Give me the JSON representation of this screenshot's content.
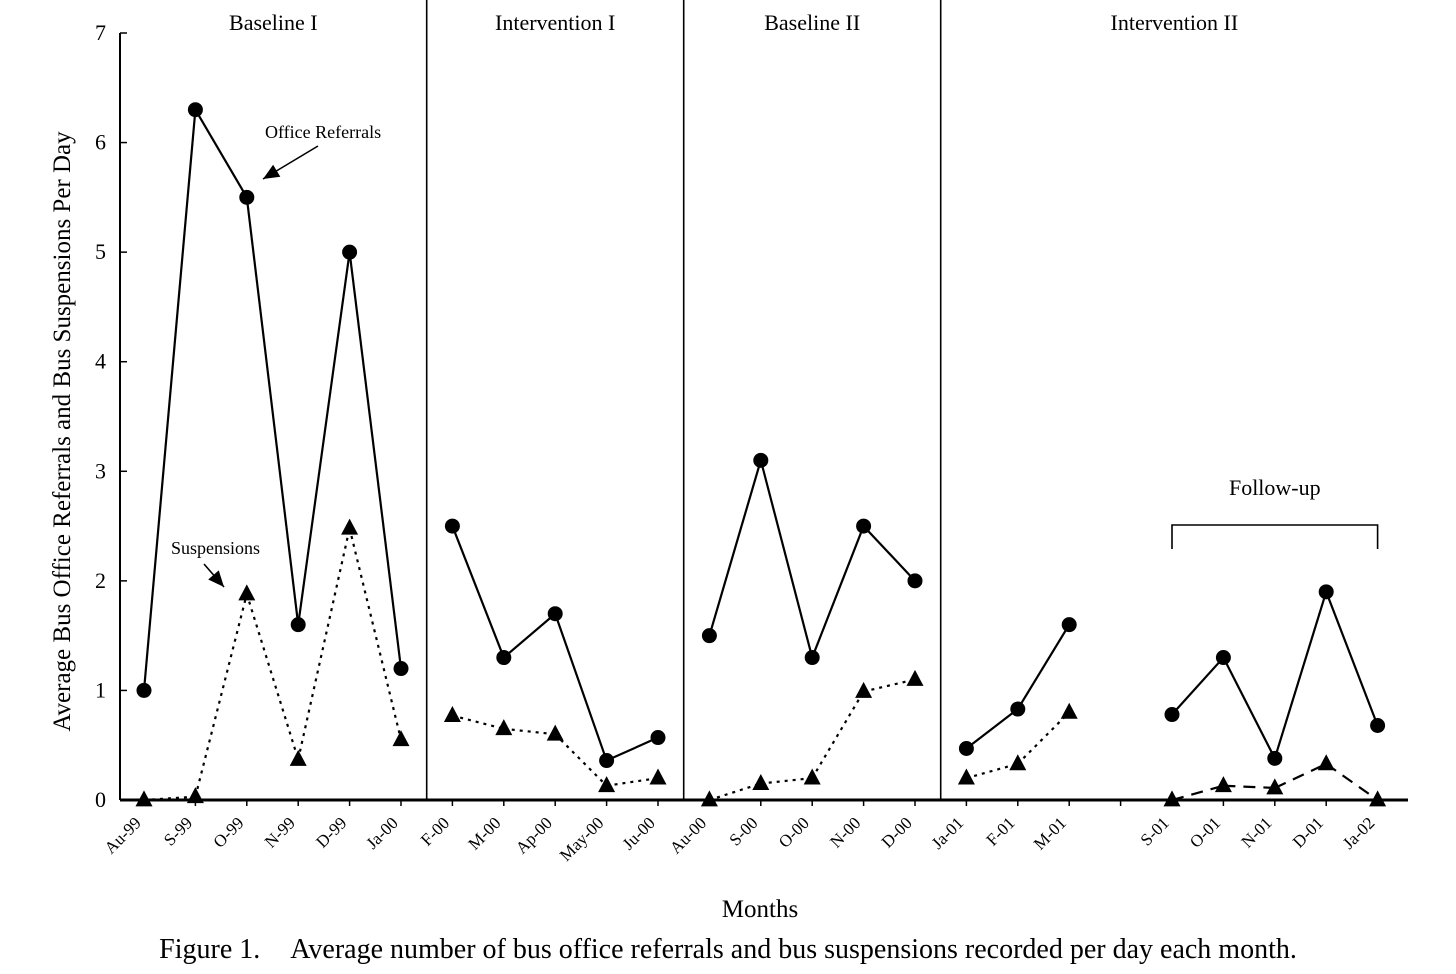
{
  "chart_data": {
    "type": "line",
    "ylabel": "Average Bus Office Referrals and Bus Suspensions Per Day",
    "xlabel": "Months",
    "ylim": [
      0,
      7
    ],
    "yticks": [
      "0",
      "1",
      "2",
      "3",
      "4",
      "5",
      "6",
      "7"
    ],
    "grid": false,
    "categories": [
      "Au-99",
      "S-99",
      "O-99",
      "N-99",
      "D-99",
      "Ja-00",
      "F-00",
      "M-00",
      "Ap-00",
      "May-00",
      "Ju-00",
      "Au-00",
      "S-00",
      "O-00",
      "N-00",
      "D-00",
      "Ja-01",
      "F-01",
      "M-01",
      "",
      "S-01",
      "O-01",
      "N-01",
      "D-01",
      "Ja-02"
    ],
    "phases": [
      {
        "label": "Baseline I",
        "start": 0,
        "end": 5
      },
      {
        "label": "Intervention I",
        "start": 6,
        "end": 10
      },
      {
        "label": "Baseline II",
        "start": 11,
        "end": 15
      },
      {
        "label": "Intervention II",
        "start": 16,
        "end": 24
      }
    ],
    "bracket_label": "Follow-up",
    "series": [
      {
        "name": "Office Referrals",
        "marker": "circle",
        "line": "solid",
        "values": [
          1.0,
          6.3,
          5.5,
          1.6,
          5.0,
          1.2,
          2.5,
          1.3,
          1.7,
          0.36,
          0.57,
          1.5,
          3.1,
          1.3,
          2.5,
          2.0,
          0.47,
          0.83,
          1.6,
          null,
          0.78,
          1.3,
          0.38,
          1.9,
          0.68
        ]
      },
      {
        "name": "Suspensions",
        "marker": "triangle",
        "line": "dotted",
        "values": [
          0.0,
          0.03,
          1.88,
          0.37,
          2.48,
          0.55,
          0.77,
          0.65,
          0.6,
          0.13,
          0.2,
          0.0,
          0.15,
          0.2,
          0.99,
          1.1,
          0.2,
          0.33,
          0.8,
          null,
          0.0,
          0.13,
          0.11,
          0.33,
          0.0
        ]
      }
    ]
  },
  "caption": {
    "number": "Figure 1.",
    "text": "Average number of bus office referrals and bus suspensions recorded per day each month."
  }
}
